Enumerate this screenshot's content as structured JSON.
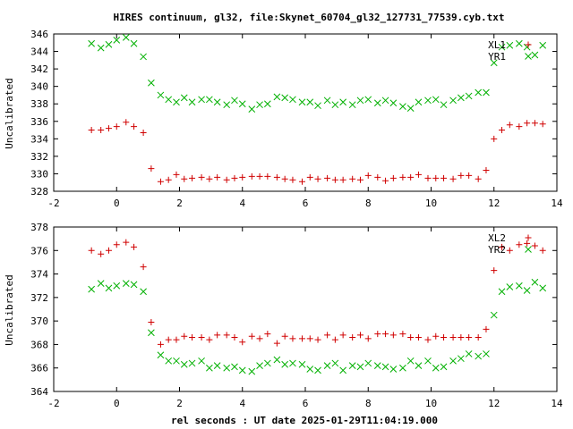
{
  "chart_data": [
    {
      "type": "scatter",
      "title": "HIRES continuum, gl32, file:Skynet_60704_gl32_127731_77539.cyb.txt",
      "xlabel": "",
      "ylabel": "Uncalibrated",
      "xlim": [
        -2,
        14
      ],
      "ylim": [
        328,
        346
      ],
      "xticks": [
        "-2",
        "0",
        "2",
        "4",
        "6",
        "8",
        "10",
        "12",
        "14"
      ],
      "yticks": [
        "328",
        "330",
        "332",
        "334",
        "336",
        "338",
        "340",
        "342",
        "344",
        "346"
      ],
      "legend_position": "top-right",
      "series": [
        {
          "name": "XL1",
          "marker": "plus",
          "color": "#d00000",
          "points": [
            [
              -0.8,
              335.0
            ],
            [
              -0.5,
              335.0
            ],
            [
              -0.25,
              335.2
            ],
            [
              0.0,
              335.4
            ],
            [
              0.3,
              335.9
            ],
            [
              0.55,
              335.4
            ],
            [
              0.85,
              334.7
            ],
            [
              1.1,
              330.6
            ],
            [
              1.4,
              329.1
            ],
            [
              1.65,
              329.3
            ],
            [
              1.9,
              329.9
            ],
            [
              2.15,
              329.4
            ],
            [
              2.4,
              329.5
            ],
            [
              2.7,
              329.6
            ],
            [
              2.95,
              329.4
            ],
            [
              3.2,
              329.6
            ],
            [
              3.5,
              329.3
            ],
            [
              3.75,
              329.5
            ],
            [
              4.0,
              329.6
            ],
            [
              4.3,
              329.7
            ],
            [
              4.55,
              329.7
            ],
            [
              4.8,
              329.7
            ],
            [
              5.1,
              329.6
            ],
            [
              5.35,
              329.4
            ],
            [
              5.6,
              329.3
            ],
            [
              5.9,
              329.1
            ],
            [
              6.15,
              329.6
            ],
            [
              6.4,
              329.4
            ],
            [
              6.7,
              329.5
            ],
            [
              6.95,
              329.3
            ],
            [
              7.2,
              329.3
            ],
            [
              7.5,
              329.4
            ],
            [
              7.75,
              329.3
            ],
            [
              8.0,
              329.8
            ],
            [
              8.3,
              329.6
            ],
            [
              8.55,
              329.2
            ],
            [
              8.8,
              329.5
            ],
            [
              9.1,
              329.6
            ],
            [
              9.35,
              329.6
            ],
            [
              9.6,
              329.9
            ],
            [
              9.9,
              329.5
            ],
            [
              10.15,
              329.5
            ],
            [
              10.4,
              329.5
            ],
            [
              10.7,
              329.4
            ],
            [
              10.95,
              329.8
            ],
            [
              11.2,
              329.8
            ],
            [
              11.5,
              329.4
            ],
            [
              11.75,
              330.4
            ],
            [
              12.0,
              334.0
            ],
            [
              12.25,
              335.0
            ],
            [
              12.5,
              335.6
            ],
            [
              12.8,
              335.4
            ],
            [
              13.05,
              335.8
            ],
            [
              13.3,
              335.8
            ],
            [
              13.55,
              335.7
            ]
          ]
        },
        {
          "name": "YR1",
          "marker": "cross",
          "color": "#00b000",
          "points": [
            [
              -0.8,
              344.9
            ],
            [
              -0.5,
              344.4
            ],
            [
              -0.25,
              344.8
            ],
            [
              0.0,
              345.3
            ],
            [
              0.3,
              345.6
            ],
            [
              0.55,
              344.9
            ],
            [
              0.85,
              343.4
            ],
            [
              1.1,
              340.4
            ],
            [
              1.4,
              339.0
            ],
            [
              1.65,
              338.5
            ],
            [
              1.9,
              338.2
            ],
            [
              2.15,
              338.7
            ],
            [
              2.4,
              338.2
            ],
            [
              2.7,
              338.5
            ],
            [
              2.95,
              338.5
            ],
            [
              3.2,
              338.2
            ],
            [
              3.5,
              337.9
            ],
            [
              3.75,
              338.4
            ],
            [
              4.0,
              338.0
            ],
            [
              4.3,
              337.4
            ],
            [
              4.55,
              337.9
            ],
            [
              4.8,
              338.0
            ],
            [
              5.1,
              338.8
            ],
            [
              5.35,
              338.7
            ],
            [
              5.6,
              338.5
            ],
            [
              5.9,
              338.2
            ],
            [
              6.15,
              338.2
            ],
            [
              6.4,
              337.8
            ],
            [
              6.7,
              338.4
            ],
            [
              6.95,
              337.9
            ],
            [
              7.2,
              338.2
            ],
            [
              7.5,
              337.9
            ],
            [
              7.75,
              338.4
            ],
            [
              8.0,
              338.5
            ],
            [
              8.3,
              338.1
            ],
            [
              8.55,
              338.4
            ],
            [
              8.8,
              338.1
            ],
            [
              9.1,
              337.7
            ],
            [
              9.35,
              337.5
            ],
            [
              9.6,
              338.2
            ],
            [
              9.9,
              338.4
            ],
            [
              10.15,
              338.5
            ],
            [
              10.4,
              337.9
            ],
            [
              10.7,
              338.4
            ],
            [
              10.95,
              338.7
            ],
            [
              11.2,
              338.9
            ],
            [
              11.5,
              339.3
            ],
            [
              11.75,
              339.3
            ],
            [
              12.0,
              342.7
            ],
            [
              12.25,
              344.5
            ],
            [
              12.5,
              344.7
            ],
            [
              12.8,
              344.9
            ],
            [
              13.05,
              344.5
            ],
            [
              13.3,
              343.6
            ],
            [
              13.55,
              344.7
            ]
          ]
        }
      ]
    },
    {
      "type": "scatter",
      "title": "",
      "xlabel": "rel seconds : UT date 2025-01-29T11:04:19.000",
      "ylabel": "Uncalibrated",
      "xlim": [
        -2,
        14
      ],
      "ylim": [
        364,
        378
      ],
      "xticks": [
        "-2",
        "0",
        "2",
        "4",
        "6",
        "8",
        "10",
        "12",
        "14"
      ],
      "yticks": [
        "364",
        "366",
        "368",
        "370",
        "372",
        "374",
        "376",
        "378"
      ],
      "legend_position": "top-right",
      "series": [
        {
          "name": "XL2",
          "marker": "plus",
          "color": "#d00000",
          "points": [
            [
              -0.8,
              376.0
            ],
            [
              -0.5,
              375.7
            ],
            [
              -0.25,
              376.0
            ],
            [
              0.0,
              376.5
            ],
            [
              0.3,
              376.7
            ],
            [
              0.55,
              376.3
            ],
            [
              0.85,
              374.6
            ],
            [
              1.1,
              369.9
            ],
            [
              1.4,
              368.0
            ],
            [
              1.65,
              368.4
            ],
            [
              1.9,
              368.4
            ],
            [
              2.15,
              368.7
            ],
            [
              2.4,
              368.6
            ],
            [
              2.7,
              368.6
            ],
            [
              2.95,
              368.4
            ],
            [
              3.2,
              368.8
            ],
            [
              3.5,
              368.8
            ],
            [
              3.75,
              368.6
            ],
            [
              4.0,
              368.2
            ],
            [
              4.3,
              368.7
            ],
            [
              4.55,
              368.5
            ],
            [
              4.8,
              368.9
            ],
            [
              5.1,
              368.1
            ],
            [
              5.35,
              368.7
            ],
            [
              5.6,
              368.5
            ],
            [
              5.9,
              368.5
            ],
            [
              6.15,
              368.5
            ],
            [
              6.4,
              368.4
            ],
            [
              6.7,
              368.8
            ],
            [
              6.95,
              368.4
            ],
            [
              7.2,
              368.8
            ],
            [
              7.5,
              368.6
            ],
            [
              7.75,
              368.8
            ],
            [
              8.0,
              368.5
            ],
            [
              8.3,
              368.9
            ],
            [
              8.55,
              368.9
            ],
            [
              8.8,
              368.8
            ],
            [
              9.1,
              368.9
            ],
            [
              9.35,
              368.6
            ],
            [
              9.6,
              368.6
            ],
            [
              9.9,
              368.4
            ],
            [
              10.15,
              368.7
            ],
            [
              10.4,
              368.6
            ],
            [
              10.7,
              368.6
            ],
            [
              10.95,
              368.6
            ],
            [
              11.2,
              368.6
            ],
            [
              11.5,
              368.6
            ],
            [
              11.75,
              369.3
            ],
            [
              12.0,
              374.3
            ],
            [
              12.25,
              376.3
            ],
            [
              12.5,
              376.0
            ],
            [
              12.8,
              376.5
            ],
            [
              13.05,
              376.6
            ],
            [
              13.3,
              376.4
            ],
            [
              13.55,
              376.0
            ]
          ]
        },
        {
          "name": "YR2",
          "marker": "cross",
          "color": "#00b000",
          "points": [
            [
              -0.8,
              372.7
            ],
            [
              -0.5,
              373.2
            ],
            [
              -0.25,
              372.8
            ],
            [
              0.0,
              373.0
            ],
            [
              0.3,
              373.2
            ],
            [
              0.55,
              373.1
            ],
            [
              0.85,
              372.5
            ],
            [
              1.1,
              369.0
            ],
            [
              1.4,
              367.1
            ],
            [
              1.65,
              366.6
            ],
            [
              1.9,
              366.6
            ],
            [
              2.15,
              366.3
            ],
            [
              2.4,
              366.4
            ],
            [
              2.7,
              366.6
            ],
            [
              2.95,
              366.0
            ],
            [
              3.2,
              366.2
            ],
            [
              3.5,
              366.0
            ],
            [
              3.75,
              366.1
            ],
            [
              4.0,
              365.8
            ],
            [
              4.3,
              365.7
            ],
            [
              4.55,
              366.2
            ],
            [
              4.8,
              366.4
            ],
            [
              5.1,
              366.7
            ],
            [
              5.35,
              366.3
            ],
            [
              5.6,
              366.4
            ],
            [
              5.9,
              366.3
            ],
            [
              6.15,
              365.9
            ],
            [
              6.4,
              365.8
            ],
            [
              6.7,
              366.2
            ],
            [
              6.95,
              366.4
            ],
            [
              7.2,
              365.8
            ],
            [
              7.5,
              366.2
            ],
            [
              7.75,
              366.1
            ],
            [
              8.0,
              366.4
            ],
            [
              8.3,
              366.2
            ],
            [
              8.55,
              366.1
            ],
            [
              8.8,
              365.9
            ],
            [
              9.1,
              366.0
            ],
            [
              9.35,
              366.6
            ],
            [
              9.6,
              366.2
            ],
            [
              9.9,
              366.6
            ],
            [
              10.15,
              366.0
            ],
            [
              10.4,
              366.1
            ],
            [
              10.7,
              366.6
            ],
            [
              10.95,
              366.8
            ],
            [
              11.2,
              367.2
            ],
            [
              11.5,
              367.0
            ],
            [
              11.75,
              367.2
            ],
            [
              12.0,
              370.5
            ],
            [
              12.25,
              372.5
            ],
            [
              12.5,
              372.9
            ],
            [
              12.8,
              373.0
            ],
            [
              13.05,
              372.6
            ],
            [
              13.3,
              373.3
            ],
            [
              13.55,
              372.8
            ]
          ]
        }
      ]
    }
  ]
}
